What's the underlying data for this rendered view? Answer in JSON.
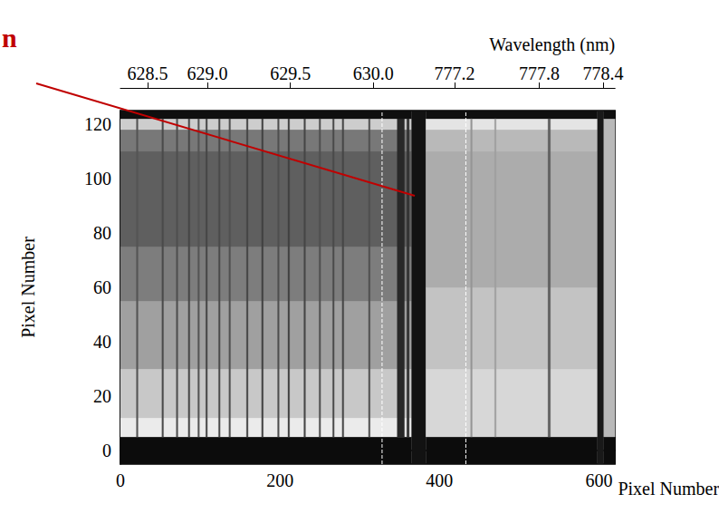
{
  "chart_data": {
    "type": "image",
    "xlabel": "Pixel Number",
    "ylabel": "Pixel Number",
    "x2label": "Wavelength (nm)",
    "xlim": [
      0,
      620
    ],
    "xticks": [
      0,
      200,
      400,
      600
    ],
    "ylim": [
      -5,
      125
    ],
    "yticks": [
      0,
      20,
      40,
      60,
      80,
      100,
      120
    ],
    "x2lim": [
      0,
      620
    ],
    "x2ticks": [
      {
        "value": 34,
        "label": "628.5"
      },
      {
        "value": 109,
        "label": "629.0"
      },
      {
        "value": 213,
        "label": "629.5"
      },
      {
        "value": 317,
        "label": "630.0"
      },
      {
        "value": 419,
        "label": "777.2"
      },
      {
        "value": 525,
        "label": "777.8"
      },
      {
        "value": 605,
        "label": "778.4"
      }
    ],
    "grid": false,
    "cells": [
      [
        0,
        365,
        -5,
        5,
        12
      ],
      [
        0,
        365,
        5,
        12,
        235
      ],
      [
        0,
        365,
        12,
        30,
        200
      ],
      [
        0,
        365,
        30,
        55,
        160
      ],
      [
        0,
        365,
        55,
        75,
        125
      ],
      [
        0,
        365,
        75,
        110,
        95
      ],
      [
        0,
        365,
        110,
        118,
        120
      ],
      [
        0,
        365,
        118,
        122,
        205
      ],
      [
        0,
        365,
        122,
        125,
        15
      ],
      [
        365,
        383,
        -5,
        125,
        18
      ],
      [
        383,
        598,
        -5,
        5,
        12
      ],
      [
        383,
        598,
        5,
        30,
        215
      ],
      [
        383,
        598,
        30,
        60,
        195
      ],
      [
        383,
        598,
        60,
        110,
        172
      ],
      [
        383,
        598,
        110,
        118,
        185
      ],
      [
        383,
        598,
        118,
        122,
        228
      ],
      [
        383,
        598,
        122,
        125,
        15
      ],
      [
        598,
        606,
        -5,
        125,
        25
      ],
      [
        606,
        620,
        -5,
        5,
        12
      ],
      [
        606,
        620,
        5,
        122,
        185
      ],
      [
        606,
        620,
        122,
        125,
        15
      ],
      [
        20,
        22,
        5,
        122,
        85
      ],
      [
        52,
        54,
        5,
        122,
        75
      ],
      [
        70,
        72,
        5,
        122,
        80
      ],
      [
        85,
        87,
        5,
        122,
        70
      ],
      [
        97,
        99,
        5,
        122,
        85
      ],
      [
        107,
        109,
        5,
        122,
        70
      ],
      [
        123,
        125,
        5,
        122,
        75
      ],
      [
        136,
        138,
        5,
        122,
        80
      ],
      [
        158,
        160,
        5,
        122,
        70
      ],
      [
        177,
        179,
        5,
        122,
        65
      ],
      [
        197,
        199,
        5,
        122,
        80
      ],
      [
        210,
        212,
        5,
        122,
        65
      ],
      [
        230,
        232,
        5,
        122,
        70
      ],
      [
        249,
        251,
        5,
        122,
        80
      ],
      [
        266,
        268,
        5,
        122,
        75
      ],
      [
        278,
        280,
        5,
        122,
        70
      ],
      [
        311,
        313,
        5,
        122,
        80
      ],
      [
        347,
        356,
        5,
        122,
        40
      ],
      [
        359,
        362,
        5,
        122,
        50
      ],
      [
        439,
        441,
        5,
        122,
        150
      ],
      [
        469,
        471,
        5,
        122,
        160
      ],
      [
        536,
        539,
        5,
        122,
        95
      ]
    ],
    "reference_lines": {
      "x": [
        328,
        433
      ],
      "color": "#ffffff",
      "line_style": "dashed"
    },
    "annotation": {
      "text": "n",
      "color": "#c00000"
    }
  }
}
